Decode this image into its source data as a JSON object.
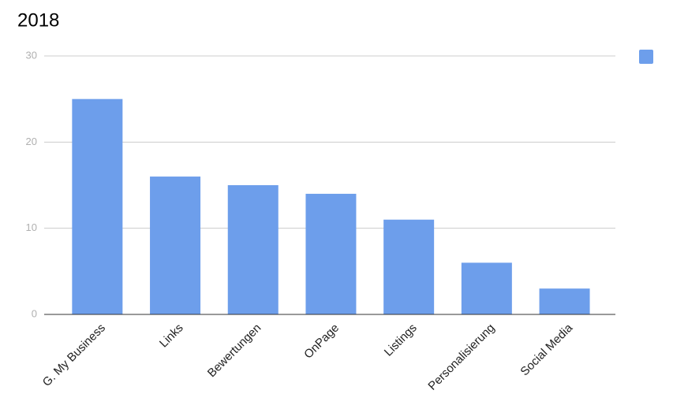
{
  "chart_data": {
    "type": "bar",
    "title": "2018",
    "categories": [
      "G. My Business",
      "Links",
      "Bewertungen",
      "OnPage",
      "Listings",
      "Personalisierung",
      "Social Media"
    ],
    "values": [
      25,
      16,
      15,
      14,
      11,
      6,
      3
    ],
    "color": "#6d9eeb",
    "ylim": [
      0,
      30
    ],
    "yticks": [
      0,
      10,
      20,
      30
    ],
    "grid": true
  }
}
